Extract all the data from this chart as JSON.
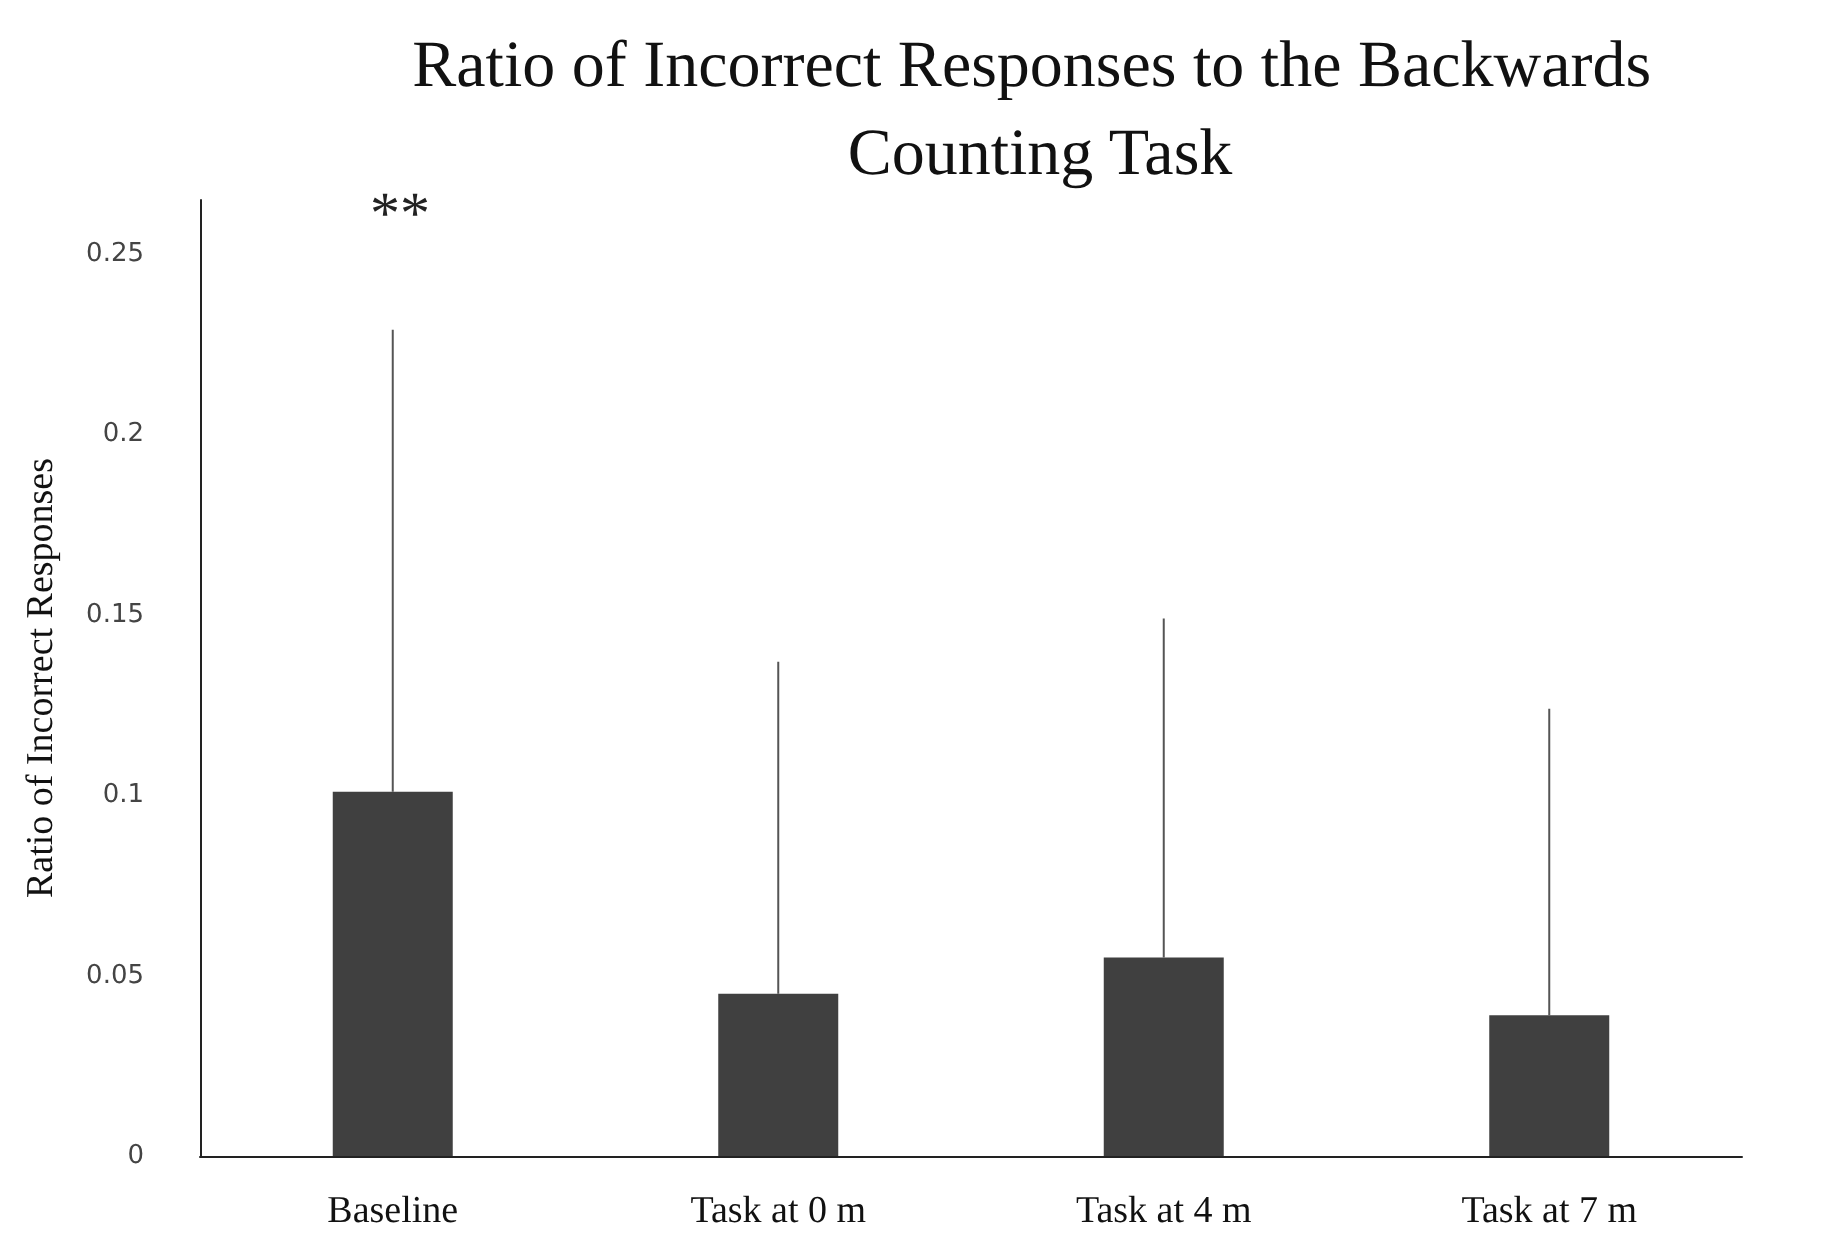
{
  "chart_data": {
    "type": "bar",
    "title": "Ratio of Incorrect Responses to the Backwards Counting Task",
    "ylabel": "Ratio of Incorrect Responses",
    "categories": [
      "Baseline",
      "Task at 0 m",
      "Task at 4 m",
      "Task at 7 m"
    ],
    "values": [
      0.101,
      0.045,
      0.055,
      0.039
    ],
    "errors": [
      [
        0.101,
        0.229
      ],
      [
        0.045,
        0.137
      ],
      [
        0.055,
        0.149
      ],
      [
        0.039,
        0.124
      ]
    ],
    "color": "#404040",
    "ylim": [
      0,
      0.265
    ],
    "yticks": [
      0,
      0.05,
      0.1,
      0.15,
      0.2,
      0.25
    ],
    "grid": false,
    "annotations": [
      "**"
    ]
  }
}
